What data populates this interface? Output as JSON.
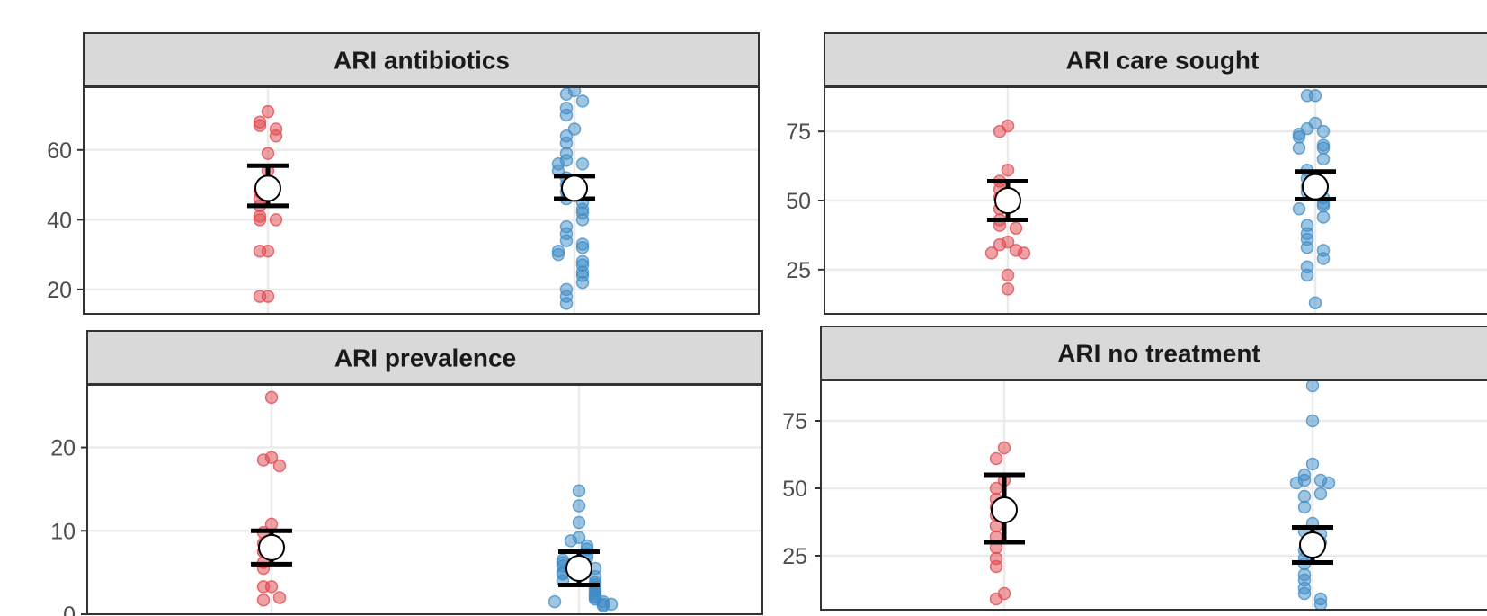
{
  "chart_data": {
    "type": "scatter",
    "colors": {
      "group_a": "#E0454C",
      "group_b": "#3E8BC6",
      "strip_bg": "#d9d9d9",
      "grid": "#ebebeb",
      "mean_marker": "#ffffff",
      "error_bar": "#000000"
    },
    "grid": true,
    "legend": "none",
    "panels": [
      {
        "title": "ARI antibiotics",
        "ylim": [
          13,
          78
        ],
        "yticks": [
          20,
          40,
          60
        ],
        "groups": [
          {
            "color": "#E0454C",
            "points": [
              71,
              68,
              67,
              66,
              64,
              59,
              54,
              50,
              48,
              46,
              44,
              41,
              40,
              40,
              31,
              31,
              18,
              18
            ],
            "mean": 49,
            "error": [
              44,
              55.5
            ]
          },
          {
            "color": "#3E8BC6",
            "points": [
              77,
              76,
              74,
              72,
              70,
              66,
              64,
              62,
              59,
              57,
              56,
              56,
              54,
              52,
              50,
              48,
              46,
              45,
              43,
              42,
              40,
              38,
              36,
              34,
              33,
              32,
              31,
              30,
              28,
              27,
              25,
              24,
              22,
              20,
              18,
              16
            ],
            "mean": 49,
            "error": [
              46,
              52.5
            ]
          }
        ]
      },
      {
        "title": "ARI care sought",
        "ylim": [
          9,
          91
        ],
        "yticks": [
          25,
          50,
          75
        ],
        "groups": [
          {
            "color": "#E0454C",
            "points": [
              77,
              75,
              61,
              57,
              54,
              51,
              47,
              43,
              41,
              40,
              35,
              34,
              32,
              31,
              31,
              23,
              18
            ],
            "mean": 50,
            "error": [
              43,
              57
            ]
          },
          {
            "color": "#3E8BC6",
            "points": [
              88,
              88,
              78,
              76,
              75,
              74,
              73,
              70,
              69,
              69,
              65,
              61,
              58,
              55,
              53,
              51,
              49,
              48,
              47,
              44,
              41,
              38,
              36,
              33,
              32,
              29,
              26,
              23,
              13
            ],
            "mean": 55,
            "error": [
              50.5,
              60.5
            ]
          }
        ]
      },
      {
        "title": "ARI prevalence",
        "ylim": [
          0,
          27.5
        ],
        "yticks": [
          0,
          10,
          20
        ],
        "groups": [
          {
            "color": "#E0454C",
            "points": [
              26,
              18.8,
              18.5,
              17.8,
              10.8,
              9.8,
              8.5,
              7.5,
              6.2,
              5.5,
              3.3,
              3.3,
              2,
              1.7
            ],
            "mean": 8,
            "error": [
              6,
              10
            ]
          },
          {
            "color": "#3E8BC6",
            "points": [
              14.8,
              13,
              11,
              9.2,
              8.8,
              8.2,
              7.8,
              7.2,
              6.8,
              6.5,
              6.2,
              5.8,
              5.5,
              5,
              4.8,
              4.5,
              4,
              3.8,
              3.5,
              3.2,
              2.8,
              2.5,
              2.2,
              2,
              1.8,
              1.5,
              1.5,
              1.2,
              1,
              1.2
            ],
            "mean": 5.5,
            "error": [
              3.5,
              7.5
            ]
          }
        ]
      },
      {
        "title": "ARI no treatment",
        "ylim": [
          5,
          90
        ],
        "yticks": [
          25,
          50,
          75
        ],
        "groups": [
          {
            "color": "#E0454C",
            "points": [
              65,
              61,
              53,
              50,
              46,
              43,
              40,
              36,
              32,
              28,
              24,
              21,
              11,
              9
            ],
            "mean": 42,
            "error": [
              30,
              55
            ]
          },
          {
            "color": "#3E8BC6",
            "points": [
              88,
              75,
              59,
              55,
              53,
              53,
              52,
              52,
              48,
              47,
              43,
              37,
              34,
              33,
              30,
              27,
              24,
              22,
              18,
              16,
              13,
              11,
              9,
              7
            ],
            "mean": 29,
            "error": [
              22.5,
              35.5
            ]
          }
        ]
      }
    ]
  }
}
